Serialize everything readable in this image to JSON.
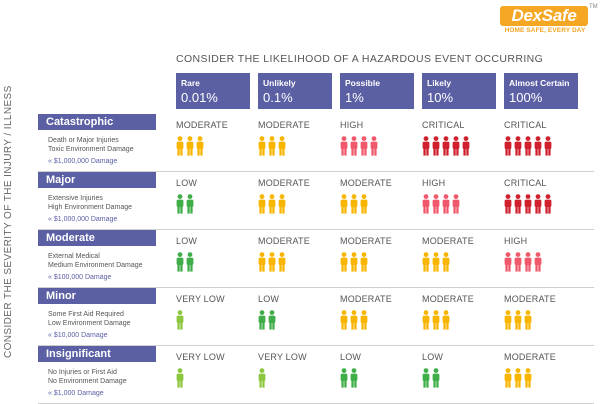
{
  "logo": {
    "name": "DexSafe",
    "tagline": "HOME SAFE, EVERY DAY"
  },
  "title_likelihood": "CONSIDER THE LIKELIHOOD OF A HAZARDOUS EVENT OCCURRING",
  "title_severity": "CONSIDER THE SEVERITY OF THE INJURY / ILLNESS",
  "colors": {
    "header": "#5b5fa4",
    "very_low": "#8dc63f",
    "low": "#3fae49",
    "moderate": "#f7b500",
    "high": "#f0596b",
    "critical": "#d0202e"
  },
  "columns": [
    {
      "label": "Rare",
      "pct": "0.01%"
    },
    {
      "label": "Unlikely",
      "pct": "0.1%"
    },
    {
      "label": "Possible",
      "pct": "1%"
    },
    {
      "label": "Likely",
      "pct": "10%"
    },
    {
      "label": "Almost Certain",
      "pct": "100%"
    }
  ],
  "rows": [
    {
      "label": "Catastrophic",
      "desc1": "Death or Major Injuries",
      "desc2": "Toxic Environment Damage",
      "damage": "$1,000,000 Damage",
      "cells": [
        {
          "rating": "MODERATE",
          "people": 3,
          "color": "moderate"
        },
        {
          "rating": "MODERATE",
          "people": 3,
          "color": "moderate"
        },
        {
          "rating": "HIGH",
          "people": 4,
          "color": "high"
        },
        {
          "rating": "CRITICAL",
          "people": 5,
          "color": "critical"
        },
        {
          "rating": "CRITICAL",
          "people": 5,
          "color": "critical"
        }
      ]
    },
    {
      "label": "Major",
      "desc1": "Extensive Injuries",
      "desc2": "High Environment Damage",
      "damage": "$1,000,000 Damage",
      "cells": [
        {
          "rating": "LOW",
          "people": 2,
          "color": "low"
        },
        {
          "rating": "MODERATE",
          "people": 3,
          "color": "moderate"
        },
        {
          "rating": "MODERATE",
          "people": 3,
          "color": "moderate"
        },
        {
          "rating": "HIGH",
          "people": 4,
          "color": "high"
        },
        {
          "rating": "CRITICAL",
          "people": 5,
          "color": "critical"
        }
      ]
    },
    {
      "label": "Moderate",
      "desc1": "External Medical",
      "desc2": "Medium Environment Damage",
      "damage": "$100,000 Damage",
      "cells": [
        {
          "rating": "LOW",
          "people": 2,
          "color": "low"
        },
        {
          "rating": "MODERATE",
          "people": 3,
          "color": "moderate"
        },
        {
          "rating": "MODERATE",
          "people": 3,
          "color": "moderate"
        },
        {
          "rating": "MODERATE",
          "people": 3,
          "color": "moderate"
        },
        {
          "rating": "HIGH",
          "people": 4,
          "color": "high"
        }
      ]
    },
    {
      "label": "Minor",
      "desc1": "Some First Aid Required",
      "desc2": "Low Environment Damage",
      "damage": "$10,000 Damage",
      "cells": [
        {
          "rating": "VERY LOW",
          "people": 1,
          "color": "very_low"
        },
        {
          "rating": "LOW",
          "people": 2,
          "color": "low"
        },
        {
          "rating": "MODERATE",
          "people": 3,
          "color": "moderate"
        },
        {
          "rating": "MODERATE",
          "people": 3,
          "color": "moderate"
        },
        {
          "rating": "MODERATE",
          "people": 3,
          "color": "moderate"
        }
      ]
    },
    {
      "label": "Insignificant",
      "desc1": "No Injuries or First Aid",
      "desc2": "No Environment Damage",
      "damage": "$1,000 Damage",
      "cells": [
        {
          "rating": "VERY LOW",
          "people": 1,
          "color": "very_low"
        },
        {
          "rating": "VERY LOW",
          "people": 1,
          "color": "very_low"
        },
        {
          "rating": "LOW",
          "people": 2,
          "color": "low"
        },
        {
          "rating": "LOW",
          "people": 2,
          "color": "low"
        },
        {
          "rating": "MODERATE",
          "people": 3,
          "color": "moderate"
        }
      ]
    }
  ]
}
